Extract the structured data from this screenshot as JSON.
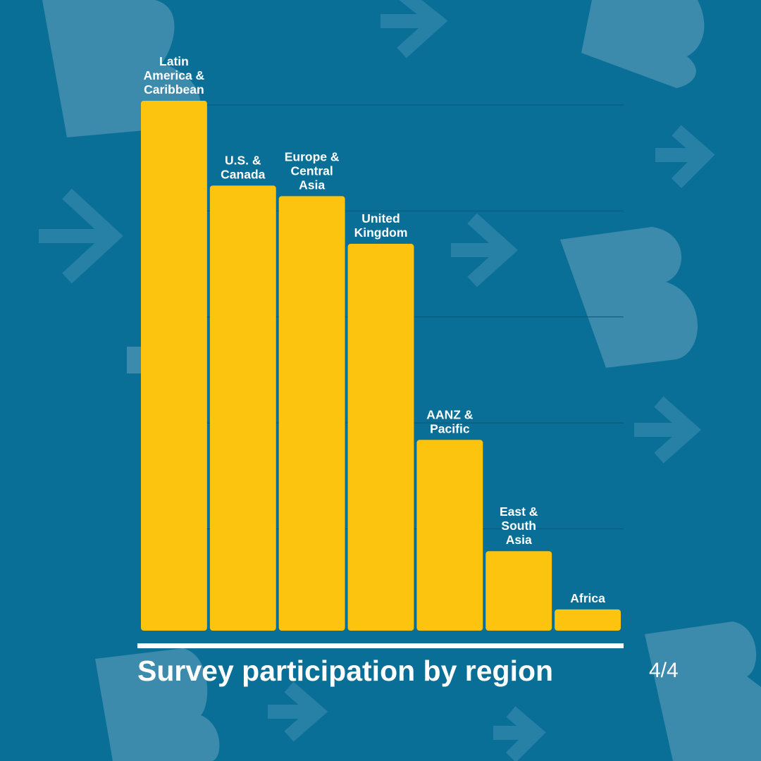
{
  "colors": {
    "background": "#0a6f97",
    "bar": "#fdc40f",
    "decor": "#4d93b3",
    "text": "#ffffff",
    "gridline": "#0b5576"
  },
  "decor_icons": [
    "letter-b-logo-icon",
    "arrow-right-icon"
  ],
  "page_indicator": "4/4",
  "chart_data": {
    "type": "bar",
    "title": "Survey participation by region",
    "categories": [
      "Latin America & Caribbean",
      "U.S. & Canada",
      "Europe & Central Asia",
      "United Kingdom",
      "AANZ & Pacific",
      "East & South Asia",
      "Africa"
    ],
    "category_label_lines": [
      [
        "Latin",
        "America &",
        "Caribbean"
      ],
      [
        "U.S. &",
        "Canada"
      ],
      [
        "Europe &",
        "Central",
        "Asia"
      ],
      [
        "United",
        "Kingdom"
      ],
      [
        "AANZ &",
        "Pacific"
      ],
      [
        "East &",
        "South",
        "Asia"
      ],
      [
        "Africa"
      ]
    ],
    "values": [
      100,
      84,
      82,
      73,
      36,
      15,
      4
    ],
    "ylim": [
      0,
      100
    ],
    "xlabel": "",
    "ylabel": "",
    "grid": true,
    "legend": "none"
  }
}
